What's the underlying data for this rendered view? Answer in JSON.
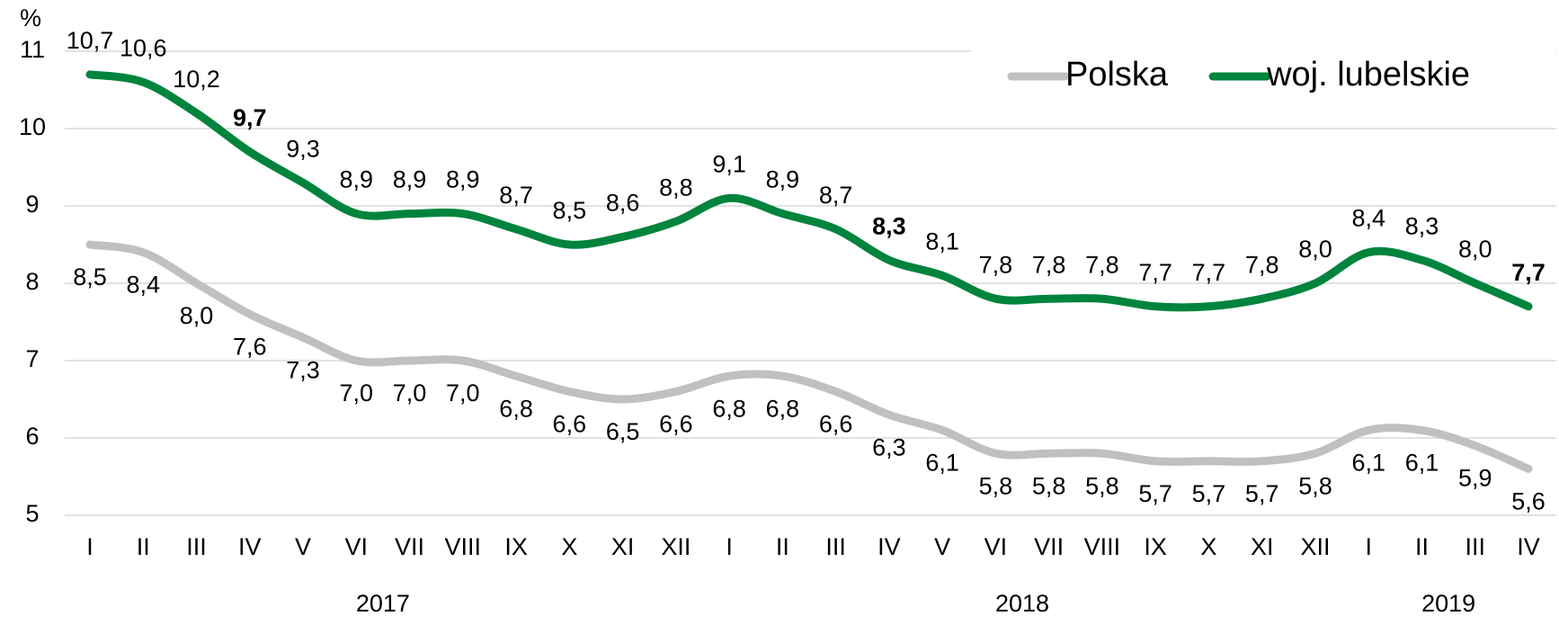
{
  "chart_data": {
    "type": "line",
    "y_label": "%",
    "categories": [
      "I",
      "II",
      "III",
      "IV",
      "V",
      "VI",
      "VII",
      "VIII",
      "IX",
      "X",
      "XI",
      "XII",
      "I",
      "II",
      "III",
      "IV",
      "V",
      "VI",
      "VII",
      "VIII",
      "IX",
      "X",
      "XI",
      "XII",
      "I",
      "II",
      "III",
      "IV"
    ],
    "groups": [
      {
        "label": "2017",
        "from": 0,
        "to": 11
      },
      {
        "label": "2018",
        "from": 12,
        "to": 23
      },
      {
        "label": "2019",
        "from": 24,
        "to": 27
      }
    ],
    "series": [
      {
        "name": "Polska",
        "color": "#c0c0c0",
        "label_side": "below",
        "values": [
          8.5,
          8.4,
          8.0,
          7.6,
          7.3,
          7.0,
          7.0,
          7.0,
          6.8,
          6.6,
          6.5,
          6.6,
          6.8,
          6.8,
          6.6,
          6.3,
          6.1,
          5.8,
          5.8,
          5.8,
          5.7,
          5.7,
          5.7,
          5.8,
          6.1,
          6.1,
          5.9,
          5.6
        ],
        "value_labels": [
          "8,5",
          "8,4",
          "8,0",
          "7,6",
          "7,3",
          "7,0",
          "7,0",
          "7,0",
          "6,8",
          "6,6",
          "6,5",
          "6,6",
          "6,8",
          "6,8",
          "6,6",
          "6,3",
          "6,1",
          "5,8",
          "5,8",
          "5,8",
          "5,7",
          "5,7",
          "5,7",
          "5,8",
          "6,1",
          "6,1",
          "5,9",
          "5,6"
        ]
      },
      {
        "name": "woj. lubelskie",
        "color": "#00843d",
        "label_side": "above",
        "bold_labels": [
          3,
          15,
          27
        ],
        "values": [
          10.7,
          10.6,
          10.2,
          9.7,
          9.3,
          8.9,
          8.9,
          8.9,
          8.7,
          8.5,
          8.6,
          8.8,
          9.1,
          8.9,
          8.7,
          8.3,
          8.1,
          7.8,
          7.8,
          7.8,
          7.7,
          7.7,
          7.8,
          8.0,
          8.4,
          8.3,
          8.0,
          7.7
        ],
        "value_labels": [
          "10,7",
          "10,6",
          "10,2",
          "9,7",
          "9,3",
          "8,9",
          "8,9",
          "8,9",
          "8,7",
          "8,5",
          "8,6",
          "8,8",
          "9,1",
          "8,9",
          "8,7",
          "8,3",
          "8,1",
          "7,8",
          "7,8",
          "7,8",
          "7,7",
          "7,7",
          "7,8",
          "8,0",
          "8,4",
          "8,3",
          "8,0",
          "7,7"
        ]
      }
    ],
    "ylim": [
      5,
      11
    ],
    "yticks": [
      5,
      6,
      7,
      8,
      9,
      10,
      11
    ],
    "grid": true,
    "legend": "top-right"
  }
}
